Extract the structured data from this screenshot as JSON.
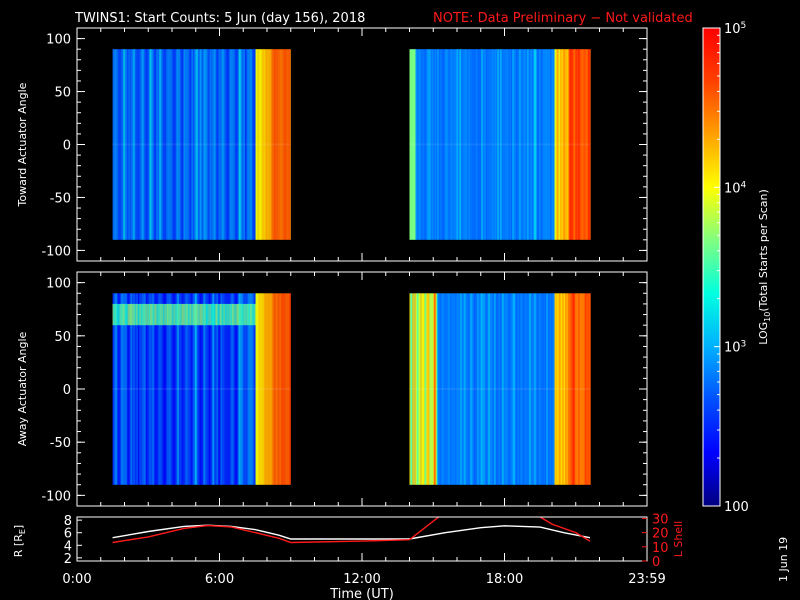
{
  "header": {
    "title": "TWINS1: Start Counts:  5 Jun (day 156), 2018",
    "note": "NOTE: Data Preliminary − Not validated"
  },
  "footer": {
    "date_stamp": "1 Jun 19"
  },
  "colors": {
    "background": "#000000",
    "note": "#ff1a1a",
    "r_line": "#ffffff",
    "lshell_line": "#ff1a1a"
  },
  "colorbar": {
    "label": "LOG10(Total Starts per Scan)",
    "label_main": "LOG",
    "label_sub": "10",
    "label_rest": "(Total Starts per Scan)",
    "ticks": [
      {
        "value": 100,
        "text": "100"
      },
      {
        "value": 1000,
        "text": "10",
        "sup": "3"
      },
      {
        "value": 10000,
        "text": "10",
        "sup": "4"
      },
      {
        "value": 100000,
        "text": "10",
        "sup": "5"
      }
    ],
    "range": [
      100,
      100000
    ],
    "scale": "log",
    "stops": [
      "#000080",
      "#0000ff",
      "#0050ff",
      "#00b0ff",
      "#00ffe0",
      "#80ff80",
      "#ffff00",
      "#ffa000",
      "#ff4000",
      "#ff0000"
    ]
  },
  "chart_data": [
    {
      "type": "heatmap",
      "name": "toward",
      "ylabel": "Toward Actuator Angle",
      "ylim": [
        -110,
        110
      ],
      "yticks": [
        100,
        50,
        0,
        -50,
        -100
      ],
      "xlim": [
        0,
        24
      ],
      "data_windows": [
        {
          "start_hour": 1.5,
          "end_hour": 9.0
        },
        {
          "start_hour": 14.0,
          "end_hour": 21.6
        }
      ],
      "angle_range": [
        -90,
        90
      ]
    },
    {
      "type": "heatmap",
      "name": "away",
      "ylabel": "Away Actuator Angle",
      "ylim": [
        -110,
        110
      ],
      "yticks": [
        100,
        50,
        0,
        -50,
        -100
      ],
      "xlim": [
        0,
        24
      ],
      "data_windows": [
        {
          "start_hour": 1.5,
          "end_hour": 9.0
        },
        {
          "start_hour": 14.0,
          "end_hour": 21.6
        }
      ],
      "angle_range": [
        -90,
        90
      ]
    },
    {
      "type": "line",
      "name": "orbit",
      "ylabel_left": "R [RE]",
      "ylabel_left_main": "R [R",
      "ylabel_left_sub": "E",
      "ylabel_left_end": "]",
      "ylabel_right": "L Shell",
      "yticks_left": [
        2,
        4,
        6,
        8
      ],
      "ylim_left": [
        1.5,
        8.5
      ],
      "yticks_right": [
        0,
        10,
        20,
        30
      ],
      "ylim_right": [
        0,
        31
      ],
      "xlabel": "Time (UT)",
      "xlim": [
        0,
        24
      ],
      "xtick_labels": [
        "0:00",
        "6:00",
        "12:00",
        "18:00",
        "23:59"
      ],
      "xtick_hours": [
        0,
        6,
        12,
        18,
        24
      ],
      "series": [
        {
          "name": "R",
          "axis": "left",
          "x": [
            1.5,
            3.0,
            4.5,
            5.5,
            6.5,
            7.5,
            8.5,
            9.0,
            12.0,
            14.0,
            15.5,
            17.0,
            18.0,
            19.5,
            20.5,
            21.6
          ],
          "values": [
            5.2,
            6.2,
            7.0,
            7.2,
            7.0,
            6.5,
            5.6,
            5.0,
            5.0,
            5.0,
            6.0,
            6.8,
            7.1,
            6.9,
            6.0,
            5.2
          ]
        },
        {
          "name": "L Shell",
          "axis": "right",
          "x": [
            1.5,
            3.0,
            4.5,
            5.5,
            6.5,
            7.5,
            8.5,
            9.0,
            12.0,
            14.0,
            15.3,
            15.6,
            19.4,
            20.0,
            21.0,
            21.6
          ],
          "values": [
            13,
            17,
            23,
            25,
            24,
            20,
            16,
            13,
            14,
            15,
            32,
            32,
            32,
            26,
            20,
            14
          ]
        }
      ]
    }
  ]
}
